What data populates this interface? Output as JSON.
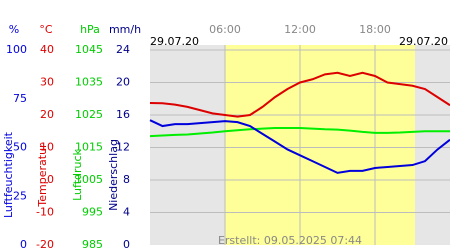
{
  "chart_data": {
    "type": "line",
    "date_left": "29.07.20",
    "date_right": "29.07.20",
    "created": "Erstellt: 09.05.2025 07:44",
    "xlim": [
      0,
      24
    ],
    "xticks": [
      {
        "value": 6,
        "label": "06:00"
      },
      {
        "value": 12,
        "label": "12:00"
      },
      {
        "value": 18,
        "label": "18:00"
      }
    ],
    "x": [
      0,
      1,
      2,
      3,
      4,
      5,
      6,
      7,
      8,
      9,
      10,
      11,
      12,
      13,
      14,
      15,
      16,
      17,
      18,
      19,
      20,
      21,
      22,
      23,
      24
    ],
    "axes": [
      {
        "unit": "%",
        "label": "Luftfeuchtigkeit",
        "color": "#0000dd",
        "lim": [
          0,
          100
        ],
        "ticks": [
          0,
          25,
          50,
          75,
          100
        ]
      },
      {
        "unit": "°C",
        "label": "Temperatur",
        "color": "#dd0000",
        "lim": [
          -20,
          40
        ],
        "ticks": [
          -20,
          -10,
          0,
          10,
          20,
          30,
          40
        ]
      },
      {
        "unit": "hPa",
        "label": "Luftdruck",
        "color": "#00cc00",
        "lim": [
          985,
          1045
        ],
        "ticks": [
          985,
          995,
          1005,
          1015,
          1025,
          1035,
          1045
        ]
      },
      {
        "unit": "mm/h",
        "label": "Niederschlag",
        "color": "#000088",
        "lim": [
          0,
          24
        ],
        "ticks": [
          0,
          4,
          8,
          12,
          16,
          20,
          24
        ]
      }
    ],
    "series": [
      {
        "axis": 1,
        "color": "#dd0000",
        "values": [
          23.7,
          23.6,
          23.2,
          22.5,
          21.5,
          20.5,
          20,
          19.5,
          20,
          22.5,
          25.5,
          28,
          30,
          31,
          32.5,
          33,
          32,
          33,
          32,
          30,
          29.5,
          29,
          28,
          25.5,
          23
        ]
      },
      {
        "axis": 2,
        "color": "#00ee00",
        "values": [
          1018.5,
          1018.7,
          1018.9,
          1019,
          1019.3,
          1019.6,
          1020,
          1020.3,
          1020.6,
          1020.8,
          1021,
          1021,
          1021,
          1020.8,
          1020.6,
          1020.5,
          1020.2,
          1019.8,
          1019.5,
          1019.5,
          1019.6,
          1019.8,
          1020,
          1020,
          1020
        ]
      },
      {
        "axis": 0,
        "color": "#0000dd",
        "values": [
          64,
          61,
          62,
          62,
          62.5,
          63,
          63.5,
          63,
          61,
          57,
          53,
          49,
          46,
          43,
          40,
          37,
          38,
          38,
          39.5,
          40,
          40.5,
          41,
          43,
          49,
          54
        ]
      }
    ],
    "grid": true
  }
}
